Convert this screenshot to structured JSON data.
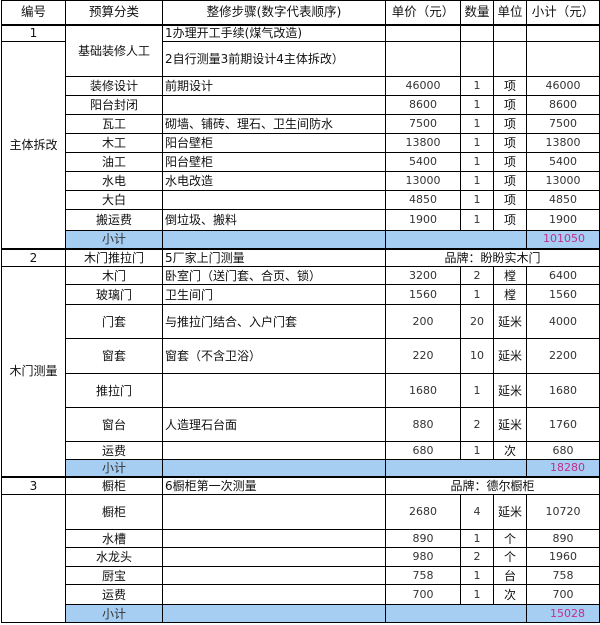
{
  "header": [
    "编号",
    "预算分类",
    "整修步骤(数字代表顺序)",
    "单价（元）",
    "数量",
    "单位",
    "小计（元）"
  ],
  "sections": [
    {
      "no": "1",
      "category": "基础装修人工",
      "steps": [
        "1办理开工手续(煤气改造)",
        "2自行测量3前期设计4主体拆改）"
      ],
      "group": "主体拆改",
      "items": [
        {
          "name": "装修设计",
          "desc": "前期设计",
          "price": "46000",
          "qty": "1",
          "unit": "项",
          "subtotal": "46000"
        },
        {
          "name": "阳台封闭",
          "desc": "",
          "price": "8600",
          "qty": "1",
          "unit": "项",
          "subtotal": "8600"
        },
        {
          "name": "瓦工",
          "desc": "砌墙、铺砖、理石、卫生间防水",
          "price": "7500",
          "qty": "1",
          "unit": "项",
          "subtotal": "7500"
        },
        {
          "name": "木工",
          "desc": "阳台壁柜",
          "price": "13800",
          "qty": "1",
          "unit": "项",
          "subtotal": "13800"
        },
        {
          "name": "油工",
          "desc": "阳台壁柜",
          "price": "5400",
          "qty": "1",
          "unit": "项",
          "subtotal": "5400"
        },
        {
          "name": "水电",
          "desc": "水电改造",
          "price": "13000",
          "qty": "1",
          "unit": "项",
          "subtotal": "13000"
        },
        {
          "name": "大白",
          "desc": "",
          "price": "4850",
          "qty": "1",
          "unit": "项",
          "subtotal": "4850"
        },
        {
          "name": "搬运费",
          "desc": "倒垃圾、搬料",
          "price": "1900",
          "qty": "1",
          "unit": "项",
          "subtotal": "1900"
        }
      ],
      "subtotal_label": "小计",
      "subtotal": "101050"
    },
    {
      "no": "2",
      "category": "木门推拉门",
      "steps": [
        "5厂家上门测量"
      ],
      "brand": "品牌：盼盼实木门",
      "group": "木门测量",
      "items": [
        {
          "name": "木门",
          "desc": "卧室门（送门套、合页、锁）",
          "price": "3200",
          "qty": "2",
          "unit": "樘",
          "subtotal": "6400"
        },
        {
          "name": "玻璃门",
          "desc": "卫生间门",
          "price": "1560",
          "qty": "1",
          "unit": "樘",
          "subtotal": "1560"
        },
        {
          "name": "门套",
          "desc": "与推拉门结合、入户门套",
          "price": "200",
          "qty": "20",
          "unit": "延米",
          "subtotal": "4000"
        },
        {
          "name": "窗套",
          "desc": "窗套（不含卫浴）",
          "price": "220",
          "qty": "10",
          "unit": "延米",
          "subtotal": "2200"
        },
        {
          "name": "推拉门",
          "desc": "",
          "price": "1680",
          "qty": "1",
          "unit": "延米",
          "subtotal": "1680"
        },
        {
          "name": "窗台",
          "desc": "人造理石台面",
          "price": "880",
          "qty": "2",
          "unit": "延米",
          "subtotal": "1760"
        },
        {
          "name": "运费",
          "desc": "",
          "price": "680",
          "qty": "1",
          "unit": "次",
          "subtotal": "680"
        }
      ],
      "subtotal_label": "小计",
      "subtotal": "18280"
    },
    {
      "no": "3",
      "category": "橱柜",
      "steps": [
        "6橱柜第一次测量"
      ],
      "brand": "品牌：德尔橱柜",
      "group": "",
      "items": [
        {
          "name": "橱柜",
          "desc": "",
          "price": "2680",
          "qty": "4",
          "unit": "延米",
          "subtotal": "10720"
        },
        {
          "name": "水槽",
          "desc": "",
          "price": "890",
          "qty": "1",
          "unit": "个",
          "subtotal": "890"
        },
        {
          "name": "水龙头",
          "desc": "",
          "price": "980",
          "qty": "2",
          "unit": "个",
          "subtotal": "1960"
        },
        {
          "name": "厨宝",
          "desc": "",
          "price": "758",
          "qty": "1",
          "unit": "台",
          "subtotal": "758"
        },
        {
          "name": "运费",
          "desc": "",
          "price": "700",
          "qty": "1",
          "unit": "次",
          "subtotal": "700"
        }
      ],
      "subtotal_label": "小计",
      "subtotal": "15028"
    }
  ],
  "colors": {
    "subtotal_fill": "#a6cdf2",
    "subtotal_text": "#c0308a"
  }
}
